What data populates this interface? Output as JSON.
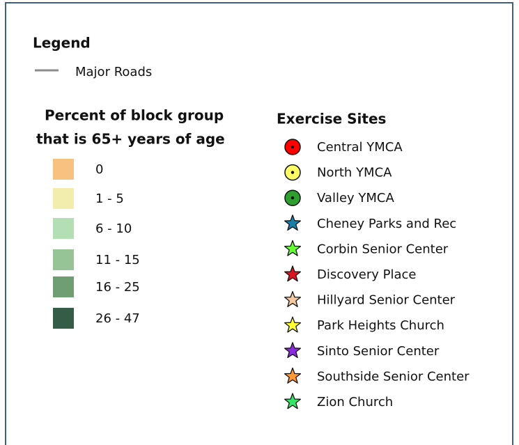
{
  "legend": {
    "title": "Legend",
    "roads": {
      "label": "Major Roads",
      "color": "#8c8c8c"
    },
    "percent": {
      "title_lines": [
        "Percent of block group",
        "that is 65+ years of age"
      ],
      "classes": [
        {
          "label": "0",
          "color": "#f7c27f"
        },
        {
          "label": "1 - 5",
          "color": "#f2ecad"
        },
        {
          "label": "6 - 10",
          "color": "#b4dfb4"
        },
        {
          "label": "11 - 15",
          "color": "#96c496"
        },
        {
          "label": "16 - 25",
          "color": "#6e9e72"
        },
        {
          "label": "26 - 47",
          "color": "#345c46"
        }
      ]
    },
    "sites": {
      "title": "Exercise Sites",
      "items": [
        {
          "label": "Central YMCA",
          "symbol": "circle",
          "color": "#ff0000"
        },
        {
          "label": "North YMCA",
          "symbol": "circle",
          "color": "#ffff66"
        },
        {
          "label": "Valley YMCA",
          "symbol": "circle",
          "color": "#2e9e2e"
        },
        {
          "label": "Cheney Parks and Rec",
          "symbol": "star",
          "color": "#1a7fa8"
        },
        {
          "label": "Corbin Senior Center",
          "symbol": "star",
          "color": "#66ff33"
        },
        {
          "label": "Discovery Place",
          "symbol": "star",
          "color": "#e0141e"
        },
        {
          "label": "Hillyard Senior Center",
          "symbol": "star",
          "color": "#f5c9a0"
        },
        {
          "label": "Park Heights Church",
          "symbol": "star",
          "color": "#ffff33"
        },
        {
          "label": "Sinto Senior Center",
          "symbol": "star",
          "color": "#8a2be2"
        },
        {
          "label": "Southside Senior Center",
          "symbol": "star",
          "color": "#ff9933"
        },
        {
          "label": "Zion Church",
          "symbol": "star",
          "color": "#33e666"
        }
      ]
    }
  }
}
